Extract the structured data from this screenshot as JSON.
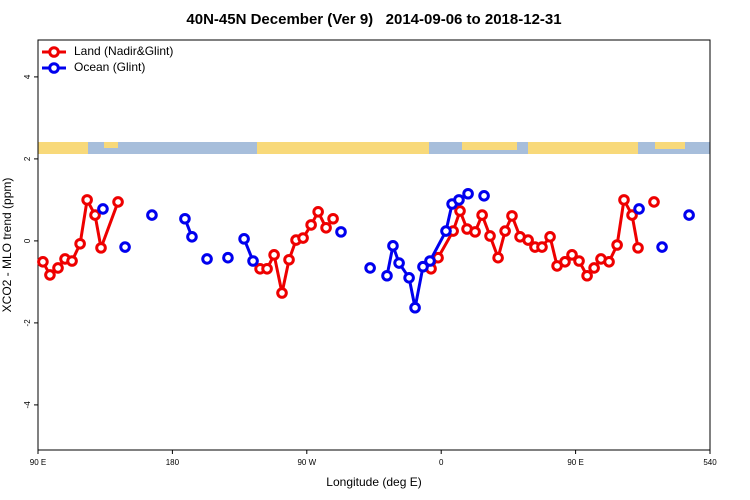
{
  "chart_data": {
    "type": "line",
    "title": "40N-45N December (Ver 9)   2014-09-06 to 2018-12-31",
    "xlabel": "Longitude (deg E)",
    "ylabel": "XCO2 - MLO trend (ppm)",
    "xlim": [
      90,
      540
    ],
    "ylim": [
      -5.1,
      4.9
    ],
    "xticks": [
      {
        "value": 90,
        "label": "90 E"
      },
      180,
      {
        "value": 270,
        "label": "90 W"
      },
      {
        "value": 360,
        "label": "0"
      },
      {
        "value": 450,
        "label": "90 E"
      },
      540
    ],
    "yticks": [
      -4,
      -2,
      0,
      2,
      4
    ],
    "legend": "top-left",
    "series": [
      {
        "name": "Land (Nadir&Glint)",
        "color": "#ee0000",
        "x": [
          93.3,
          98.0,
          103.4,
          108.1,
          112.8,
          118.2,
          122.9,
          128.2,
          132.2,
          143.6,
          null,
          238.7,
          243.4,
          248.1,
          253.4,
          258.1,
          262.8,
          267.5,
          272.9,
          277.6,
          282.9,
          287.6,
          null,
          353.2,
          357.9,
          368.0,
          372.6,
          377.3,
          382.7,
          387.4,
          392.7,
          398.1,
          402.8,
          407.4,
          412.8,
          418.2,
          422.8,
          427.5,
          432.9,
          437.6,
          442.9,
          447.6,
          452.3,
          457.7,
          462.4,
          467.0,
          472.4,
          477.8,
          482.4,
          487.8,
          491.8,
          null,
          502.5
        ],
        "values": [
          -0.51,
          -0.83,
          -0.66,
          -0.44,
          -0.49,
          -0.07,
          1.0,
          0.63,
          -0.17,
          0.95,
          null,
          -0.68,
          -0.68,
          -0.34,
          -1.27,
          -0.46,
          0.02,
          0.07,
          0.39,
          0.71,
          0.32,
          0.54,
          null,
          -0.68,
          -0.41,
          0.24,
          0.73,
          0.29,
          0.22,
          0.63,
          0.12,
          -0.41,
          0.24,
          0.61,
          0.1,
          0.02,
          -0.15,
          -0.15,
          0.1,
          -0.61,
          -0.51,
          -0.34,
          -0.49,
          -0.85,
          -0.66,
          -0.44,
          -0.51,
          -0.1,
          1.0,
          0.63,
          -0.17,
          null,
          0.95
        ]
      },
      {
        "name": "Ocean (Glint)",
        "color": "#0000ee",
        "x": [
          133.5,
          null,
          148.3,
          null,
          166.3,
          null,
          188.4,
          193.1,
          null,
          203.2,
          null,
          217.2,
          null,
          228.0,
          234.0,
          null,
          292.9,
          null,
          312.4,
          null,
          323.7,
          327.7,
          331.8,
          338.5,
          342.5,
          347.8,
          352.5,
          363.2,
          367.3,
          371.9,
          378.0,
          null,
          388.7,
          null,
          492.5,
          null,
          507.9,
          null,
          526.0
        ],
        "values": [
          0.78,
          null,
          -0.15,
          null,
          0.63,
          null,
          0.54,
          0.1,
          null,
          -0.44,
          null,
          -0.41,
          null,
          0.05,
          -0.49,
          null,
          0.22,
          null,
          -0.66,
          null,
          -0.85,
          -0.12,
          -0.54,
          -0.9,
          -1.63,
          -0.63,
          -0.49,
          0.24,
          0.9,
          1.0,
          1.15,
          null,
          1.1,
          null,
          0.78,
          null,
          -0.15,
          null,
          0.63
        ]
      }
    ]
  }
}
